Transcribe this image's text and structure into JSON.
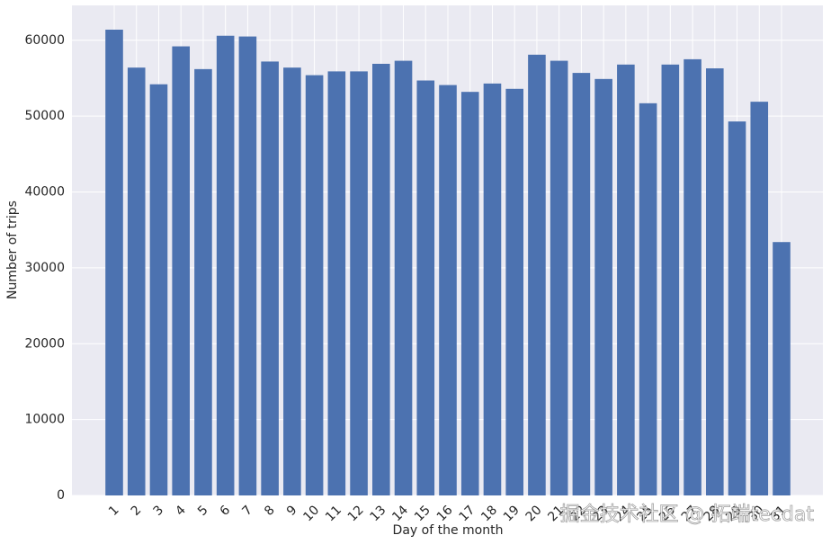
{
  "chart_data": {
    "type": "bar",
    "xlabel": "Day of the month",
    "ylabel": "Number of trips",
    "categories": [
      "1",
      "2",
      "3",
      "4",
      "5",
      "6",
      "7",
      "8",
      "9",
      "10",
      "11",
      "12",
      "13",
      "14",
      "15",
      "16",
      "17",
      "18",
      "19",
      "20",
      "21",
      "22",
      "23",
      "24",
      "25",
      "26",
      "27",
      "28",
      "29",
      "30",
      "31"
    ],
    "values": [
      61400,
      56400,
      54200,
      59200,
      56200,
      60600,
      60500,
      57200,
      56400,
      55400,
      55900,
      55900,
      56900,
      57300,
      54700,
      54100,
      53200,
      54300,
      53600,
      58100,
      57300,
      55700,
      54900,
      56800,
      51700,
      56800,
      57500,
      56300,
      49300,
      51900,
      33400
    ],
    "color": "#4c72b0",
    "ylim": [
      0,
      64600
    ],
    "yticks": [
      0,
      10000,
      20000,
      30000,
      40000,
      50000,
      60000
    ],
    "grid": true,
    "watermark": "掘金技术社区 @ 拓端tecdat"
  }
}
